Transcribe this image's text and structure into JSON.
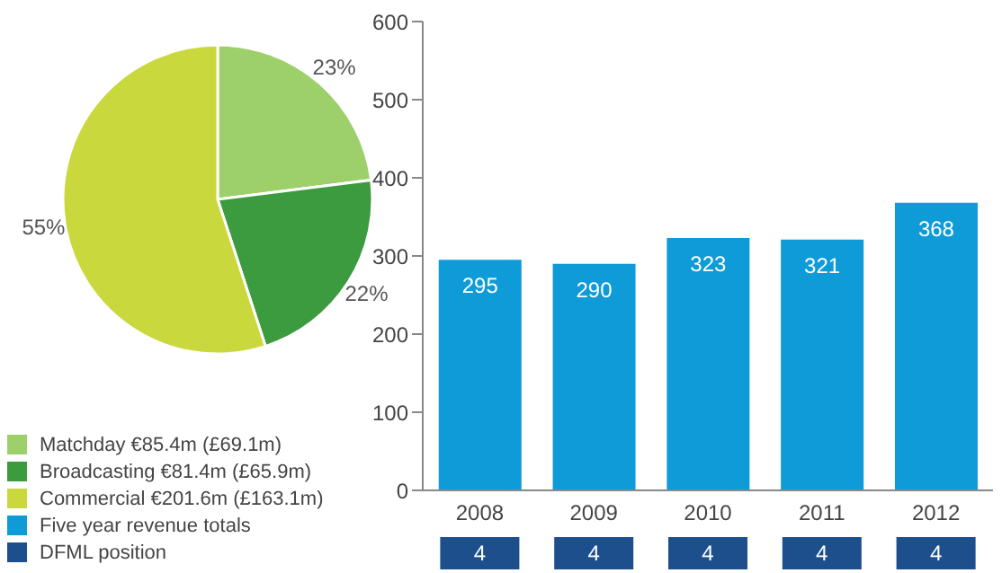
{
  "chart_data": [
    {
      "type": "pie",
      "categories": [
        "Matchday €85.4m (£69.1m)",
        "Broadcasting €81.4m (£65.9m)",
        "Commercial €201.6m (£163.1m)"
      ],
      "values": [
        23,
        22,
        55
      ],
      "colors": [
        "#9dcf6b",
        "#3d9b3f",
        "#c9d83c"
      ],
      "data_labels": true,
      "value_labels": [
        "23%",
        "22%",
        "55%"
      ],
      "legend": "bottom"
    },
    {
      "type": "bar",
      "categories": [
        "2008",
        "2009",
        "2010",
        "2011",
        "2012"
      ],
      "series": [
        {
          "name": "Five year revenue totals",
          "color": "#0e9bd8",
          "values": [
            295,
            290,
            323,
            321,
            368
          ]
        }
      ],
      "ylim": [
        0,
        600
      ],
      "yticks": [
        0,
        100,
        200,
        300,
        400,
        500,
        600
      ],
      "data_labels": true,
      "grid": false,
      "legend": "bottom left"
    },
    {
      "type": "other",
      "series": [
        {
          "name": "DFML position",
          "color": "#1d4f8c",
          "values": [
            4,
            4,
            4,
            4,
            4
          ]
        }
      ],
      "data_labels": true,
      "legend": "bottom left"
    }
  ]
}
